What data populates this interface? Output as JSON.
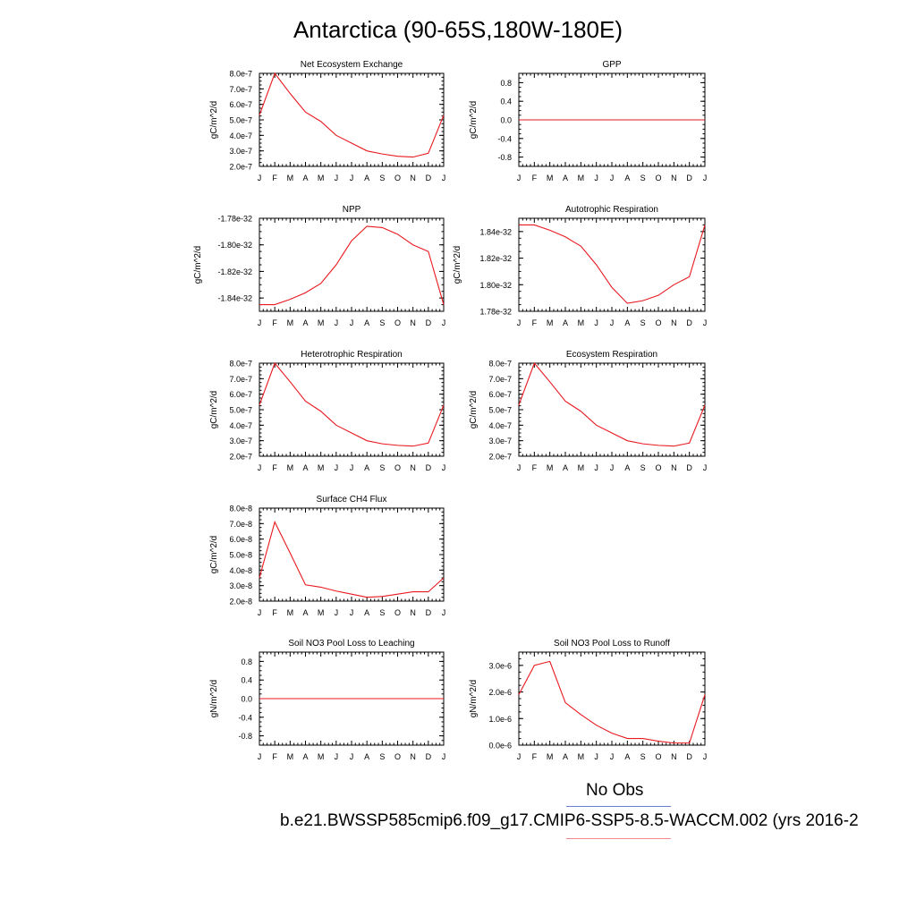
{
  "title": "Antarctica (90-65S,180W-180E)",
  "legend": {
    "obs_label": "No Obs",
    "obs_color": "#6a7fd6",
    "case_label": "b.e21.BWSSP585cmip6.f09_g17.CMIP6-SSP5-8.5-WACCM.002 (yrs 2016-2",
    "case_color": "#f08a8a"
  },
  "line_color": "#e8191f",
  "chart_data": [
    {
      "type": "line",
      "title": "Net Ecosystem Exchange",
      "xlabel": "",
      "ylabel": "gC/m^2/d",
      "x": [
        "J",
        "F",
        "M",
        "A",
        "M",
        "J",
        "J",
        "A",
        "S",
        "O",
        "N",
        "D",
        "J"
      ],
      "ylim": [
        2e-07,
        8e-07
      ],
      "yticks": [
        "8.0e-7",
        "7.0e-7",
        "6.0e-7",
        "5.0e-7",
        "4.0e-7",
        "3.0e-7",
        "2.0e-7"
      ],
      "series": [
        {
          "values": [
            5.3e-07,
            8e-07,
            6.7e-07,
            5.5e-07,
            4.9e-07,
            4e-07,
            3.5e-07,
            3e-07,
            2.8e-07,
            2.65e-07,
            2.6e-07,
            2.85e-07,
            5.3e-07
          ]
        }
      ]
    },
    {
      "type": "line",
      "title": "GPP",
      "xlabel": "",
      "ylabel": "gC/m^2/d",
      "x": [
        "J",
        "F",
        "M",
        "A",
        "M",
        "J",
        "J",
        "A",
        "S",
        "O",
        "N",
        "D",
        "J"
      ],
      "ylim": [
        -1.0,
        1.0
      ],
      "yticks": [
        "0.8",
        "0.4",
        "0.0",
        "-0.4",
        "-0.8"
      ],
      "series": [
        {
          "values": [
            0,
            0,
            0,
            0,
            0,
            0,
            0,
            0,
            0,
            0,
            0,
            0,
            0
          ]
        }
      ]
    },
    {
      "type": "line",
      "title": "NPP",
      "xlabel": "",
      "ylabel": "gC/m^2/d",
      "x": [
        "J",
        "F",
        "M",
        "A",
        "M",
        "J",
        "J",
        "A",
        "S",
        "O",
        "N",
        "D",
        "J"
      ],
      "ylim": [
        -1.85e-32,
        -1.78e-32
      ],
      "yticks": [
        "-1.78e-32",
        "-1.80e-32",
        "-1.82e-32",
        "-1.84e-32"
      ],
      "series": [
        {
          "values": [
            -1.845e-32,
            -1.845e-32,
            -1.841e-32,
            -1.836e-32,
            -1.829e-32,
            -1.815e-32,
            -1.797e-32,
            -1.786e-32,
            -1.787e-32,
            -1.792e-32,
            -1.8e-32,
            -1.805e-32,
            -1.845e-32
          ]
        }
      ]
    },
    {
      "type": "line",
      "title": "Autotrophic Respiration",
      "xlabel": "",
      "ylabel": "gC/m^2/d",
      "x": [
        "J",
        "F",
        "M",
        "A",
        "M",
        "J",
        "J",
        "A",
        "S",
        "O",
        "N",
        "D",
        "J"
      ],
      "ylim": [
        1.78e-32,
        1.85e-32
      ],
      "yticks": [
        "1.84e-32",
        "1.82e-32",
        "1.80e-32",
        "1.78e-32"
      ],
      "series": [
        {
          "values": [
            1.845e-32,
            1.845e-32,
            1.841e-32,
            1.836e-32,
            1.829e-32,
            1.815e-32,
            1.798e-32,
            1.786e-32,
            1.788e-32,
            1.792e-32,
            1.8e-32,
            1.806e-32,
            1.845e-32
          ]
        }
      ]
    },
    {
      "type": "line",
      "title": "Heterotrophic Respiration",
      "xlabel": "",
      "ylabel": "gC/m^2/d",
      "x": [
        "J",
        "F",
        "M",
        "A",
        "M",
        "J",
        "J",
        "A",
        "S",
        "O",
        "N",
        "D",
        "J"
      ],
      "ylim": [
        2e-07,
        8e-07
      ],
      "yticks": [
        "8.0e-7",
        "7.0e-7",
        "6.0e-7",
        "5.0e-7",
        "4.0e-7",
        "3.0e-7",
        "2.0e-7"
      ],
      "series": [
        {
          "values": [
            5.3e-07,
            8e-07,
            6.8e-07,
            5.55e-07,
            4.9e-07,
            4e-07,
            3.5e-07,
            3e-07,
            2.8e-07,
            2.7e-07,
            2.65e-07,
            2.85e-07,
            5.3e-07
          ]
        }
      ]
    },
    {
      "type": "line",
      "title": "Ecosystem Respiration",
      "xlabel": "",
      "ylabel": "gC/m^2/d",
      "x": [
        "J",
        "F",
        "M",
        "A",
        "M",
        "J",
        "J",
        "A",
        "S",
        "O",
        "N",
        "D",
        "J"
      ],
      "ylim": [
        2e-07,
        8e-07
      ],
      "yticks": [
        "8.0e-7",
        "7.0e-7",
        "6.0e-7",
        "5.0e-7",
        "4.0e-7",
        "3.0e-7",
        "2.0e-7"
      ],
      "series": [
        {
          "values": [
            5.3e-07,
            8e-07,
            6.8e-07,
            5.55e-07,
            4.9e-07,
            4e-07,
            3.5e-07,
            3e-07,
            2.8e-07,
            2.7e-07,
            2.65e-07,
            2.85e-07,
            5.3e-07
          ]
        }
      ]
    },
    {
      "type": "line",
      "title": "Surface CH4 Flux",
      "xlabel": "",
      "ylabel": "gC/m^2/d",
      "x": [
        "J",
        "F",
        "M",
        "A",
        "M",
        "J",
        "J",
        "A",
        "S",
        "O",
        "N",
        "D",
        "J"
      ],
      "ylim": [
        2e-08,
        8e-08
      ],
      "yticks": [
        "8.0e-8",
        "7.0e-8",
        "6.0e-8",
        "5.0e-8",
        "4.0e-8",
        "3.0e-8",
        "2.0e-8"
      ],
      "series": [
        {
          "values": [
            3.5e-08,
            7.1e-08,
            5.1e-08,
            3.05e-08,
            2.9e-08,
            2.65e-08,
            2.45e-08,
            2.25e-08,
            2.3e-08,
            2.45e-08,
            2.6e-08,
            2.6e-08,
            3.5e-08
          ]
        }
      ]
    },
    {
      "type": "line",
      "title": "Soil NO3 Pool Loss to Leaching",
      "xlabel": "",
      "ylabel": "gN/m^2/d",
      "x": [
        "J",
        "F",
        "M",
        "A",
        "M",
        "J",
        "J",
        "A",
        "S",
        "O",
        "N",
        "D",
        "J"
      ],
      "ylim": [
        -1.0,
        1.0
      ],
      "yticks": [
        "0.8",
        "0.4",
        "0.0",
        "-0.4",
        "-0.8"
      ],
      "series": [
        {
          "values": [
            0,
            0,
            0,
            0,
            0,
            0,
            0,
            0,
            0,
            0,
            0,
            0,
            0
          ]
        }
      ]
    },
    {
      "type": "line",
      "title": "Soil NO3 Pool Loss to Runoff",
      "xlabel": "",
      "ylabel": "gN/m^2/d",
      "x": [
        "J",
        "F",
        "M",
        "A",
        "M",
        "J",
        "J",
        "A",
        "S",
        "O",
        "N",
        "D",
        "J"
      ],
      "ylim": [
        0,
        3.5e-06
      ],
      "yticks": [
        "3.0e-6",
        "2.0e-6",
        "1.0e-6",
        "0.0e-6"
      ],
      "series": [
        {
          "values": [
            1.9e-06,
            3e-06,
            3.15e-06,
            1.6e-06,
            1.15e-06,
            7.5e-07,
            4.5e-07,
            2.5e-07,
            2.5e-07,
            1.5e-07,
            8e-08,
            8e-08,
            1.9e-06
          ]
        }
      ]
    }
  ]
}
